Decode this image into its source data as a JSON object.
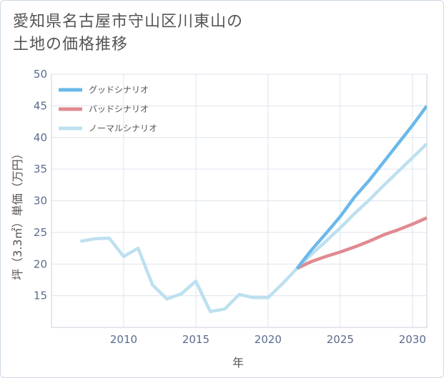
{
  "title_line1": "愛知県名古屋市守山区川東山の",
  "title_line2": "土地の価格推移",
  "chart_data": {
    "type": "line",
    "title": "愛知県名古屋市守山区川東山の土地の価格推移",
    "xlabel": "年",
    "ylabel": "坪（3.3㎡）単価（万円）",
    "xlim": [
      2005,
      2031
    ],
    "ylim": [
      10,
      50
    ],
    "xticks": [
      2010,
      2015,
      2020,
      2025,
      2030
    ],
    "yticks": [
      15,
      20,
      25,
      30,
      35,
      40,
      45,
      50
    ],
    "grid": true,
    "legend_position": "top-left",
    "series": [
      {
        "name": "グッドシナリオ",
        "color": "#6cb8ea",
        "x": [
          2022,
          2023,
          2024,
          2025,
          2026,
          2027,
          2028,
          2029,
          2030,
          2031
        ],
        "y": [
          19.3,
          22.2,
          24.8,
          27.5,
          30.6,
          33.2,
          36.1,
          39.0,
          41.9,
          45.0
        ]
      },
      {
        "name": "バッドシナリオ",
        "color": "#e08a91",
        "x": [
          2022,
          2023,
          2024,
          2025,
          2026,
          2027,
          2028,
          2029,
          2030,
          2031
        ],
        "y": [
          19.3,
          20.4,
          21.2,
          21.9,
          22.7,
          23.6,
          24.6,
          25.4,
          26.3,
          27.3
        ]
      },
      {
        "name": "ノーマルシナリオ",
        "color": "#bde0f0",
        "x": [
          2007,
          2008,
          2009,
          2010,
          2011,
          2012,
          2013,
          2014,
          2015,
          2016,
          2017,
          2018,
          2019,
          2020,
          2021,
          2022,
          2023,
          2024,
          2025,
          2026,
          2027,
          2028,
          2029,
          2030,
          2031
        ],
        "y": [
          23.6,
          24.0,
          24.1,
          21.2,
          22.5,
          16.7,
          14.5,
          15.3,
          17.3,
          12.5,
          12.9,
          15.2,
          14.7,
          14.7,
          16.9,
          19.3,
          21.5,
          23.6,
          25.7,
          28.0,
          30.1,
          32.4,
          34.6,
          36.8,
          39.0
        ]
      }
    ]
  }
}
